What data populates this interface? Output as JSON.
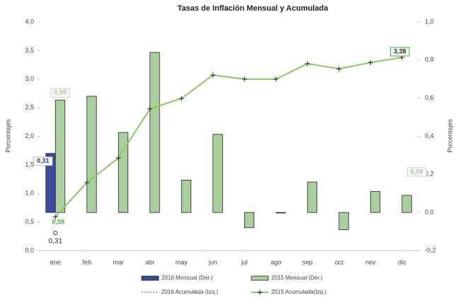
{
  "chart_data": {
    "type": "bar",
    "title": "Tasas de Inflación Mensual y Acumulada",
    "y_label": "Porcentajes",
    "y2_label": "Porcentajes",
    "categories": [
      "ene",
      "feb",
      "mar",
      "abr",
      "may",
      "jun",
      "jul",
      "ago",
      "sep",
      "oct",
      "nov",
      "dic"
    ],
    "ylim": [
      0,
      4
    ],
    "yticks": [
      {
        "value": 0,
        "label": "0,0"
      },
      {
        "value": 0.5,
        "label": "0,5"
      },
      {
        "value": 1,
        "label": "1,0"
      },
      {
        "value": 1.5,
        "label": "1,5"
      },
      {
        "value": 2,
        "label": "2,0"
      },
      {
        "value": 2.5,
        "label": "2,5"
      },
      {
        "value": 3,
        "label": "3,0"
      },
      {
        "value": 3.5,
        "label": "3,5"
      },
      {
        "value": 4,
        "label": "4,0"
      }
    ],
    "y2lim": [
      -0.2,
      1
    ],
    "y2ticks": [
      {
        "value": -0.2,
        "label": "-0,2"
      },
      {
        "value": 0,
        "label": "0,0"
      },
      {
        "value": 0.2,
        "label": "0,2"
      },
      {
        "value": 0.4,
        "label": "0,4"
      },
      {
        "value": 0.6,
        "label": "0,6"
      },
      {
        "value": 0.8,
        "label": "0,8"
      },
      {
        "value": 1,
        "label": "1,0"
      }
    ],
    "legend": "bottom",
    "series": [
      {
        "name": "2016 Mensual (Der.)",
        "type": "bar",
        "axis": "y2",
        "color": "#3b4a9c",
        "values": [
          0.31,
          null,
          null,
          null,
          null,
          null,
          null,
          null,
          null,
          null,
          null,
          null
        ],
        "value_labels": [
          "0,31",
          null,
          null,
          null,
          null,
          null,
          null,
          null,
          null,
          null,
          null,
          null
        ]
      },
      {
        "name": "2015 Mensual (Der.)",
        "type": "bar",
        "axis": "y2",
        "color": "#a9cf9e",
        "values": [
          0.59,
          0.61,
          0.42,
          0.84,
          0.17,
          0.41,
          -0.08,
          0.0,
          0.16,
          -0.09,
          0.11,
          0.09
        ],
        "value_labels": [
          "0,59",
          null,
          null,
          null,
          null,
          null,
          null,
          null,
          null,
          null,
          null,
          "0,09"
        ]
      },
      {
        "name": "2016 Acumulada (Izq.)",
        "type": "line",
        "axis": "y",
        "color": "#555555",
        "values": [
          0.31,
          null,
          null,
          null,
          null,
          null,
          null,
          null,
          null,
          null,
          null,
          null
        ],
        "value_labels": [
          "0,31",
          null,
          null,
          null,
          null,
          null,
          null,
          null,
          null,
          null,
          null,
          null
        ]
      },
      {
        "name": "2015 Acumulada(Izq.)",
        "type": "line",
        "axis": "y",
        "color": "#8dc95e",
        "values": [
          0.59,
          1.19,
          1.62,
          2.48,
          2.66,
          3.07,
          3.0,
          3.0,
          3.27,
          3.18,
          3.29,
          3.38
        ],
        "value_labels": [
          "0,59",
          null,
          null,
          null,
          null,
          null,
          null,
          null,
          null,
          null,
          null,
          "3,38"
        ]
      }
    ]
  }
}
